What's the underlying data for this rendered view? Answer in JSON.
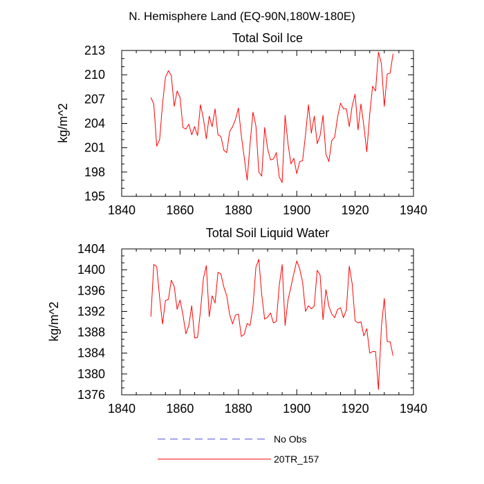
{
  "figure": {
    "title": "N. Hemisphere Land (EQ-90N,180W-180E)"
  },
  "chart_data": [
    {
      "type": "line",
      "title": "Total Soil Ice",
      "xlabel": "",
      "ylabel": "kg/m^2",
      "xlim": [
        1840,
        1940
      ],
      "ylim": [
        195,
        213
      ],
      "xticks": [
        1840,
        1860,
        1880,
        1900,
        1920,
        1940
      ],
      "yticks": [
        195,
        198,
        201,
        204,
        207,
        210,
        213
      ],
      "series": [
        {
          "name": "20TR_157",
          "color": "#ff0000",
          "x": [
            1850,
            1851,
            1852,
            1853,
            1854,
            1855,
            1856,
            1857,
            1858,
            1859,
            1860,
            1861,
            1862,
            1863,
            1864,
            1865,
            1866,
            1867,
            1868,
            1869,
            1870,
            1871,
            1872,
            1873,
            1874,
            1875,
            1876,
            1877,
            1878,
            1879,
            1880,
            1881,
            1882,
            1883,
            1884,
            1885,
            1886,
            1887,
            1888,
            1889,
            1890,
            1891,
            1892,
            1893,
            1894,
            1895,
            1896,
            1897,
            1898,
            1899,
            1900,
            1901,
            1902,
            1903,
            1904,
            1905,
            1906,
            1907,
            1908,
            1909,
            1910,
            1911,
            1912,
            1913,
            1914,
            1915,
            1916,
            1917,
            1918,
            1919,
            1920,
            1921,
            1922,
            1923,
            1924,
            1925,
            1926,
            1927,
            1928,
            1929,
            1930,
            1931,
            1932,
            1933
          ],
          "values": [
            207.2,
            206.4,
            201.2,
            202.0,
            206.4,
            209.7,
            210.5,
            209.9,
            206.1,
            208.0,
            207.2,
            203.5,
            203.3,
            203.9,
            202.6,
            203.6,
            202.5,
            206.3,
            204.6,
            202.1,
            204.9,
            203.6,
            205.8,
            202.6,
            202.4,
            200.7,
            200.4,
            203.0,
            203.6,
            204.5,
            205.9,
            202.5,
            199.8,
            197.0,
            201.5,
            205.4,
            203.7,
            198.0,
            197.5,
            203.5,
            200.9,
            199.5,
            199.6,
            200.4,
            197.4,
            196.7,
            205.0,
            201.5,
            199.0,
            199.7,
            197.8,
            199.3,
            199.4,
            202.6,
            206.3,
            202.8,
            204.9,
            201.5,
            202.5,
            205.0,
            200.2,
            199.3,
            201.9,
            202.3,
            204.8,
            206.5,
            205.8,
            205.8,
            203.6,
            206.2,
            207.6,
            203.2,
            206.4,
            203.7,
            200.5,
            205.1,
            208.6,
            208.0,
            212.8,
            211.4,
            206.1,
            210.1,
            210.2,
            212.6
          ]
        }
      ]
    },
    {
      "type": "line",
      "title": "Total Soil Liquid Water",
      "xlabel": "",
      "ylabel": "kg/m^2",
      "xlim": [
        1840,
        1940
      ],
      "ylim": [
        1376,
        1404
      ],
      "xticks": [
        1840,
        1860,
        1880,
        1900,
        1920,
        1940
      ],
      "yticks": [
        1376,
        1380,
        1384,
        1388,
        1392,
        1396,
        1400,
        1404
      ],
      "series": [
        {
          "name": "20TR_157",
          "color": "#ff0000",
          "x": [
            1850,
            1851,
            1852,
            1853,
            1854,
            1855,
            1856,
            1857,
            1858,
            1859,
            1860,
            1861,
            1862,
            1863,
            1864,
            1865,
            1866,
            1867,
            1868,
            1869,
            1870,
            1871,
            1872,
            1873,
            1874,
            1875,
            1876,
            1877,
            1878,
            1879,
            1880,
            1881,
            1882,
            1883,
            1884,
            1885,
            1886,
            1887,
            1888,
            1889,
            1890,
            1891,
            1892,
            1893,
            1894,
            1895,
            1896,
            1897,
            1898,
            1899,
            1900,
            1901,
            1902,
            1903,
            1904,
            1905,
            1906,
            1907,
            1908,
            1909,
            1910,
            1911,
            1912,
            1913,
            1914,
            1915,
            1916,
            1917,
            1918,
            1919,
            1920,
            1921,
            1922,
            1923,
            1924,
            1925,
            1926,
            1927,
            1928,
            1929,
            1930,
            1931,
            1932,
            1933
          ],
          "values": [
            1391.0,
            1401.0,
            1400.6,
            1394.7,
            1389.6,
            1394.1,
            1394.3,
            1398.0,
            1396.8,
            1392.4,
            1394.2,
            1391.3,
            1387.7,
            1389.3,
            1393.1,
            1386.9,
            1387.0,
            1392.1,
            1398.3,
            1400.8,
            1391.0,
            1395.0,
            1393.6,
            1399.5,
            1399.2,
            1396.7,
            1395.0,
            1391.4,
            1389.6,
            1391.3,
            1391.5,
            1387.2,
            1387.6,
            1389.7,
            1389.3,
            1393.0,
            1400.5,
            1402.0,
            1395.2,
            1390.5,
            1390.9,
            1391.7,
            1389.8,
            1390.1,
            1397.0,
            1401.0,
            1389.3,
            1394.2,
            1396.7,
            1399.3,
            1401.7,
            1400.2,
            1397.6,
            1392.0,
            1393.1,
            1392.5,
            1393.0,
            1399.9,
            1399.0,
            1390.4,
            1396.2,
            1393.0,
            1391.5,
            1390.8,
            1392.4,
            1392.7,
            1390.8,
            1392.3,
            1400.7,
            1397.3,
            1390.2,
            1389.8,
            1390.0,
            1387.3,
            1388.7,
            1384.0,
            1384.3,
            1384.3,
            1377.0,
            1389.0,
            1394.5,
            1386.2,
            1386.2,
            1383.5
          ]
        }
      ]
    }
  ],
  "legend": {
    "position": "bottom-center",
    "items": [
      {
        "label": "No Obs",
        "color": "#4a4adc",
        "style": "dashed"
      },
      {
        "label": "20TR_157",
        "color": "#ff0000",
        "style": "solid"
      }
    ]
  }
}
